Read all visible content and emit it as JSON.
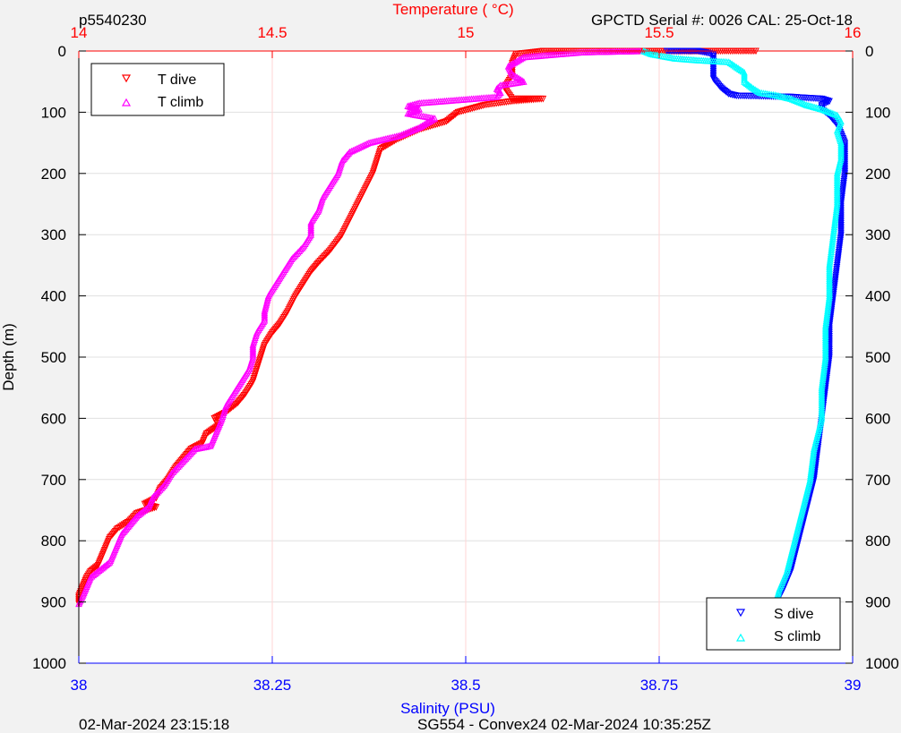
{
  "header": {
    "left": "p5540230",
    "right": "GPCTD Serial #: 0026 CAL: 25-Oct-18"
  },
  "footer": {
    "left": "02-Mar-2024 23:15:18",
    "center": "SG554 - Convex24 02-Mar-2024 10:35:25Z"
  },
  "colors": {
    "temperature_axis": "#ff0000",
    "salinity_axis": "#0000ff",
    "t_dive": "#ff0000",
    "t_climb": "#ff00ff",
    "s_dive": "#0000ff",
    "s_climb": "#00ffff",
    "background": "#f2f2f2",
    "plot_area": "#ffffff"
  },
  "chart_data": {
    "type": "scatter",
    "title": "",
    "ylabel": "Depth (m)",
    "ylim": [
      0,
      1000
    ],
    "y_reversed": true,
    "yticks": [
      0,
      100,
      200,
      300,
      400,
      500,
      600,
      700,
      800,
      900,
      1000
    ],
    "grid": true,
    "temperature_axis": {
      "label": "Temperature (    °C)",
      "position": "top",
      "lim": [
        14,
        16
      ],
      "ticks": [
        14,
        14.5,
        15,
        15.5,
        16
      ],
      "tick_labels": [
        "14",
        "14.5",
        "15",
        "15.5",
        "16"
      ]
    },
    "salinity_axis": {
      "label": "Salinity (PSU)",
      "position": "bottom",
      "lim": [
        38,
        39
      ],
      "ticks": [
        38,
        38.25,
        38.5,
        38.75,
        39
      ],
      "tick_labels": [
        "38",
        "38.25",
        "38.5",
        "38.75",
        "39"
      ]
    },
    "legend_temperature": {
      "placement": "top-left",
      "entries": [
        "T dive",
        "T climb"
      ]
    },
    "legend_salinity": {
      "placement": "bottom-right",
      "entries": [
        "S dive",
        "S climb"
      ]
    },
    "series": [
      {
        "name": "T dive",
        "axis": "temperature",
        "marker": "triangle-down",
        "color": "#ff0000",
        "points": [
          [
            15.75,
            0
          ],
          [
            15.45,
            0
          ],
          [
            15.2,
            0
          ],
          [
            15.13,
            5
          ],
          [
            15.12,
            20
          ],
          [
            15.12,
            40
          ],
          [
            15.1,
            60
          ],
          [
            15.12,
            78
          ],
          [
            15.2,
            78
          ],
          [
            15.12,
            82
          ],
          [
            15.05,
            88
          ],
          [
            14.98,
            100
          ],
          [
            14.95,
            115
          ],
          [
            14.88,
            128
          ],
          [
            14.82,
            145
          ],
          [
            14.78,
            160
          ],
          [
            14.77,
            180
          ],
          [
            14.76,
            200
          ],
          [
            14.74,
            225
          ],
          [
            14.72,
            250
          ],
          [
            14.7,
            275
          ],
          [
            14.68,
            300
          ],
          [
            14.65,
            325
          ],
          [
            14.62,
            345
          ],
          [
            14.6,
            360
          ],
          [
            14.58,
            380
          ],
          [
            14.56,
            400
          ],
          [
            14.54,
            425
          ],
          [
            14.52,
            445
          ],
          [
            14.5,
            460
          ],
          [
            14.48,
            480
          ],
          [
            14.47,
            500
          ],
          [
            14.46,
            520
          ],
          [
            14.45,
            540
          ],
          [
            14.43,
            560
          ],
          [
            14.41,
            575
          ],
          [
            14.38,
            590
          ],
          [
            14.35,
            600
          ],
          [
            14.36,
            612
          ],
          [
            14.33,
            625
          ],
          [
            14.32,
            640
          ],
          [
            14.29,
            650
          ],
          [
            14.27,
            665
          ],
          [
            14.25,
            680
          ],
          [
            14.23,
            700
          ],
          [
            14.21,
            715
          ],
          [
            14.2,
            730
          ],
          [
            14.17,
            740
          ],
          [
            14.2,
            745
          ],
          [
            14.15,
            755
          ],
          [
            14.13,
            768
          ],
          [
            14.1,
            780
          ],
          [
            14.08,
            795
          ],
          [
            14.07,
            810
          ],
          [
            14.06,
            825
          ],
          [
            14.05,
            840
          ],
          [
            14.03,
            850
          ],
          [
            14.02,
            860
          ],
          [
            14.01,
            875
          ],
          [
            14.0,
            890
          ],
          [
            14.0,
            903
          ]
        ]
      },
      {
        "name": "T climb",
        "axis": "temperature",
        "marker": "triangle-up",
        "color": "#ff00ff",
        "points": [
          [
            15.45,
            0
          ],
          [
            15.3,
            2
          ],
          [
            15.15,
            10
          ],
          [
            15.11,
            25
          ],
          [
            15.12,
            38
          ],
          [
            15.15,
            50
          ],
          [
            15.09,
            56
          ],
          [
            15.08,
            62
          ],
          [
            15.09,
            68
          ],
          [
            15.08,
            75
          ],
          [
            14.98,
            80
          ],
          [
            14.88,
            85
          ],
          [
            14.85,
            90
          ],
          [
            14.88,
            95
          ],
          [
            14.85,
            102
          ],
          [
            14.92,
            110
          ],
          [
            14.88,
            125
          ],
          [
            14.83,
            138
          ],
          [
            14.75,
            150
          ],
          [
            14.7,
            165
          ],
          [
            14.68,
            180
          ],
          [
            14.67,
            200
          ],
          [
            14.65,
            220
          ],
          [
            14.63,
            240
          ],
          [
            14.62,
            260
          ],
          [
            14.6,
            280
          ],
          [
            14.6,
            300
          ],
          [
            14.58,
            320
          ],
          [
            14.55,
            340
          ],
          [
            14.53,
            360
          ],
          [
            14.51,
            380
          ],
          [
            14.49,
            400
          ],
          [
            14.48,
            425
          ],
          [
            14.48,
            440
          ],
          [
            14.46,
            460
          ],
          [
            14.45,
            480
          ],
          [
            14.45,
            500
          ],
          [
            14.44,
            520
          ],
          [
            14.42,
            540
          ],
          [
            14.4,
            560
          ],
          [
            14.38,
            580
          ],
          [
            14.37,
            600
          ],
          [
            14.36,
            615
          ],
          [
            14.35,
            630
          ],
          [
            14.34,
            645
          ],
          [
            14.3,
            650
          ],
          [
            14.27,
            670
          ],
          [
            14.24,
            690
          ],
          [
            14.22,
            710
          ],
          [
            14.19,
            730
          ],
          [
            14.18,
            745
          ],
          [
            14.15,
            760
          ],
          [
            14.13,
            775
          ],
          [
            14.11,
            790
          ],
          [
            14.1,
            805
          ],
          [
            14.09,
            820
          ],
          [
            14.08,
            835
          ],
          [
            14.06,
            845
          ],
          [
            14.03,
            860
          ],
          [
            14.02,
            875
          ],
          [
            14.01,
            890
          ],
          [
            14.0,
            903
          ]
        ]
      },
      {
        "name": "S dive",
        "axis": "salinity",
        "marker": "triangle-down",
        "color": "#0000ff",
        "points": [
          [
            38.76,
            0
          ],
          [
            38.8,
            0
          ],
          [
            38.82,
            5
          ],
          [
            38.82,
            20
          ],
          [
            38.82,
            45
          ],
          [
            38.83,
            60
          ],
          [
            38.84,
            70
          ],
          [
            38.85,
            73
          ],
          [
            38.89,
            74
          ],
          [
            38.92,
            75
          ],
          [
            38.96,
            78
          ],
          [
            38.97,
            82
          ],
          [
            38.96,
            88
          ],
          [
            38.96,
            95
          ],
          [
            38.97,
            105
          ],
          [
            38.98,
            120
          ],
          [
            38.985,
            135
          ],
          [
            38.99,
            150
          ],
          [
            38.99,
            175
          ],
          [
            38.99,
            200
          ],
          [
            38.985,
            250
          ],
          [
            38.985,
            300
          ],
          [
            38.98,
            350
          ],
          [
            38.975,
            400
          ],
          [
            38.97,
            450
          ],
          [
            38.97,
            500
          ],
          [
            38.965,
            550
          ],
          [
            38.96,
            600
          ],
          [
            38.955,
            650
          ],
          [
            38.95,
            700
          ],
          [
            38.94,
            750
          ],
          [
            38.93,
            800
          ],
          [
            38.92,
            850
          ],
          [
            38.91,
            880
          ],
          [
            38.9,
            905
          ]
        ]
      },
      {
        "name": "S climb",
        "axis": "salinity",
        "marker": "triangle-up",
        "color": "#00ffff",
        "points": [
          [
            38.73,
            0
          ],
          [
            38.74,
            5
          ],
          [
            38.77,
            12
          ],
          [
            38.8,
            15
          ],
          [
            38.84,
            18
          ],
          [
            38.86,
            35
          ],
          [
            38.86,
            50
          ],
          [
            38.87,
            60
          ],
          [
            38.88,
            68
          ],
          [
            38.9,
            72
          ],
          [
            38.92,
            78
          ],
          [
            38.94,
            88
          ],
          [
            38.96,
            95
          ],
          [
            38.98,
            105
          ],
          [
            38.985,
            115
          ],
          [
            38.98,
            130
          ],
          [
            38.985,
            150
          ],
          [
            38.985,
            175
          ],
          [
            38.98,
            200
          ],
          [
            38.98,
            250
          ],
          [
            38.975,
            300
          ],
          [
            38.97,
            350
          ],
          [
            38.97,
            400
          ],
          [
            38.965,
            450
          ],
          [
            38.965,
            500
          ],
          [
            38.96,
            550
          ],
          [
            38.96,
            600
          ],
          [
            38.95,
            650
          ],
          [
            38.945,
            700
          ],
          [
            38.935,
            750
          ],
          [
            38.925,
            800
          ],
          [
            38.915,
            850
          ],
          [
            38.905,
            880
          ],
          [
            38.9,
            905
          ]
        ]
      }
    ]
  }
}
